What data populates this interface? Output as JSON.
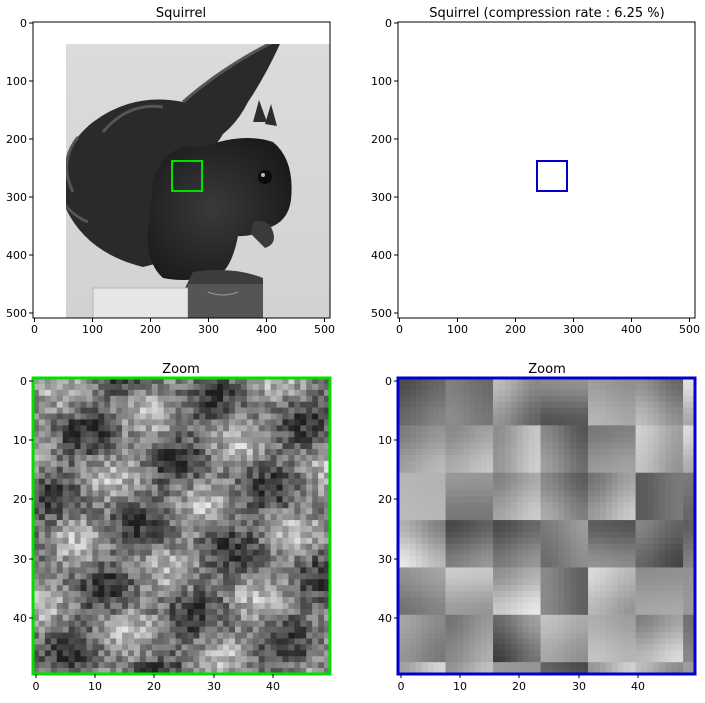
{
  "panels": {
    "top_left": {
      "title": "Squirrel"
    },
    "top_right": {
      "title": "Squirrel (compression rate : 6.25 %)"
    },
    "bottom_left": {
      "title": "Zoom"
    },
    "bottom_right": {
      "title": "Zoom"
    }
  },
  "axes": {
    "full_x_ticks": [
      "0",
      "100",
      "200",
      "300",
      "400",
      "500"
    ],
    "full_y_ticks": [
      "0",
      "100",
      "200",
      "300",
      "400",
      "500"
    ],
    "zoom_x_ticks": [
      "0",
      "10",
      "20",
      "30",
      "40"
    ],
    "zoom_y_ticks": [
      "0",
      "10",
      "20",
      "30",
      "40"
    ]
  },
  "highlight_box": {
    "x_range": [
      240,
      290
    ],
    "y_range": [
      240,
      290
    ]
  },
  "colors": {
    "original_box": "#00e000",
    "compressed_box": "#0000cc",
    "background": "#d9d9d9"
  },
  "icons": [
    "squirrel-photo",
    "squirrel-photo-compressed",
    "fur-texture-zoom",
    "fur-texture-zoom-blocky"
  ]
}
